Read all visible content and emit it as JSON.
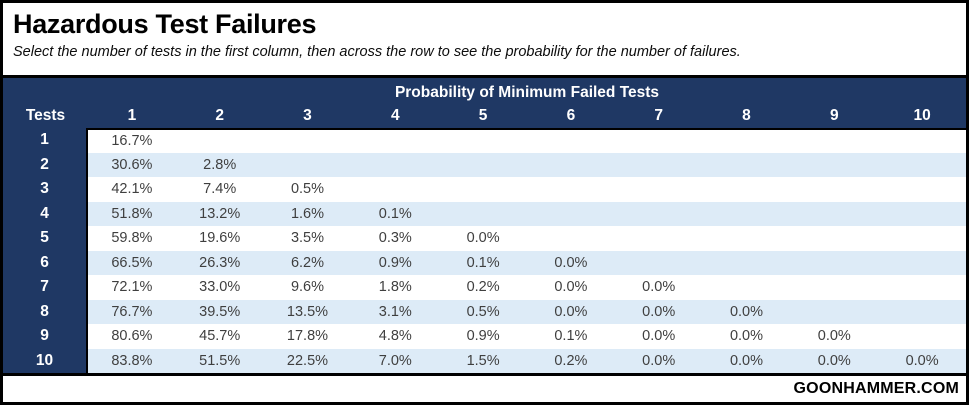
{
  "page": {
    "title": "Hazardous Test Failures",
    "subtitle": "Select the number of tests in the first column, then across the row to see the probability for the number of failures.",
    "brand": "GOONHAMMER.COM"
  },
  "colors": {
    "header_navy": "#1F3864",
    "row_alt_blue": "#DDEBF7",
    "row_white": "#FFFFFF",
    "border_black": "#000000",
    "cell_text": "#3F3F3F"
  },
  "chart_data": {
    "type": "table",
    "title": "Probability of Minimum Failed Tests",
    "row_axis_label": "Tests",
    "columns": [
      "1",
      "2",
      "3",
      "4",
      "5",
      "6",
      "7",
      "8",
      "9",
      "10"
    ],
    "rows": [
      {
        "tests": "1",
        "values": [
          "16.7%"
        ]
      },
      {
        "tests": "2",
        "values": [
          "30.6%",
          "2.8%"
        ]
      },
      {
        "tests": "3",
        "values": [
          "42.1%",
          "7.4%",
          "0.5%"
        ]
      },
      {
        "tests": "4",
        "values": [
          "51.8%",
          "13.2%",
          "1.6%",
          "0.1%"
        ]
      },
      {
        "tests": "5",
        "values": [
          "59.8%",
          "19.6%",
          "3.5%",
          "0.3%",
          "0.0%"
        ]
      },
      {
        "tests": "6",
        "values": [
          "66.5%",
          "26.3%",
          "6.2%",
          "0.9%",
          "0.1%",
          "0.0%"
        ]
      },
      {
        "tests": "7",
        "values": [
          "72.1%",
          "33.0%",
          "9.6%",
          "1.8%",
          "0.2%",
          "0.0%",
          "0.0%"
        ]
      },
      {
        "tests": "8",
        "values": [
          "76.7%",
          "39.5%",
          "13.5%",
          "3.1%",
          "0.5%",
          "0.0%",
          "0.0%",
          "0.0%"
        ]
      },
      {
        "tests": "9",
        "values": [
          "80.6%",
          "45.7%",
          "17.8%",
          "4.8%",
          "0.9%",
          "0.1%",
          "0.0%",
          "0.0%",
          "0.0%"
        ]
      },
      {
        "tests": "10",
        "values": [
          "83.8%",
          "51.5%",
          "22.5%",
          "7.0%",
          "1.5%",
          "0.2%",
          "0.0%",
          "0.0%",
          "0.0%",
          "0.0%"
        ]
      }
    ]
  }
}
